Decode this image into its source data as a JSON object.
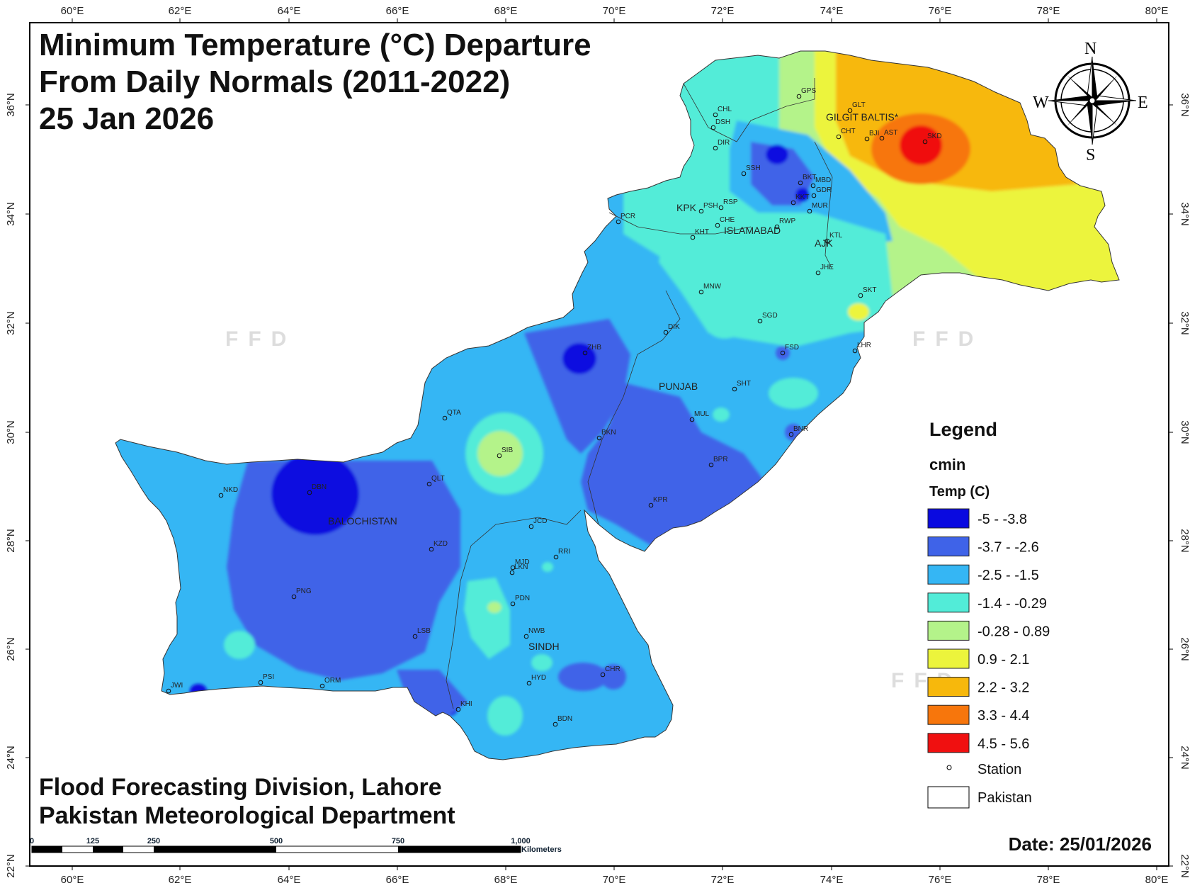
{
  "title": {
    "line1": "Minimum Temperature (°C) Departure",
    "line2": "From Daily Normals (2011-2022)",
    "line3": "25 Jan 2026"
  },
  "credits": {
    "line1": "Flood Forecasting Division, Lahore",
    "line2": "Pakistan Meteorological Department"
  },
  "date_label": "Date: 25/01/2026",
  "watermark": "FFD",
  "compass": {
    "n": "N",
    "s": "S",
    "e": "E",
    "w": "W"
  },
  "axes": {
    "lon_labels": [
      "60°E",
      "62°E",
      "64°E",
      "66°E",
      "68°E",
      "70°E",
      "72°E",
      "74°E",
      "76°E",
      "78°E",
      "80°E"
    ],
    "lat_labels": [
      "36°N",
      "34°N",
      "32°N",
      "30°N",
      "28°N",
      "26°N",
      "24°N",
      "22°N"
    ]
  },
  "scale_bar": {
    "labels": [
      "0",
      "125",
      "250",
      "500",
      "750",
      "1,000"
    ],
    "unit": "Kilometers"
  },
  "regions": {
    "gilgit": "GILGIT BALTIS*",
    "kpk": "KPK",
    "islamabad": "ISLAMABAD",
    "ajk": "AJK",
    "punjab": "PUNJAB",
    "balochistan": "BALOCHISTAN",
    "sindh": "SINDH"
  },
  "stations": [
    "GPS",
    "GLT",
    "CHT",
    "BJI",
    "AST",
    "SKD",
    "CHL",
    "DSH",
    "DIR",
    "SSH",
    "BKT",
    "MBD",
    "GDR",
    "KKT",
    "MUR",
    "PSH",
    "RSP",
    "CHE",
    "KHT",
    "PCR",
    "RWP",
    "KTL",
    "JHE",
    "SKT",
    "MNW",
    "SGD",
    "DIK",
    "ZHB",
    "LHR",
    "FSD",
    "SHT",
    "QTA",
    "MUL",
    "BKN",
    "BNR",
    "SIB",
    "BPR",
    "QLT",
    "NKD",
    "DBN",
    "KPR",
    "JCD",
    "KZD",
    "RRI",
    "LKN",
    "MJD",
    "PNG",
    "PDN",
    "NWB",
    "LSB",
    "CHR",
    "HYD",
    "PSI",
    "ORM",
    "JWI",
    "KHI",
    "BDN"
  ],
  "legend": {
    "title": "Legend",
    "layer": "cmin",
    "field": "Temp (C)",
    "classes": [
      {
        "label": "-5 - -3.8",
        "color": "#0a0ae0"
      },
      {
        "label": "-3.7 - -2.6",
        "color": "#3f63e8"
      },
      {
        "label": "-2.5 - -1.5",
        "color": "#35b6f4"
      },
      {
        "label": "-1.4 - -0.29",
        "color": "#52ecd8"
      },
      {
        "label": "-0.28 - 0.89",
        "color": "#b4f38a"
      },
      {
        "label": "0.9 - 2.1",
        "color": "#ecf43c"
      },
      {
        "label": "2.2 - 3.2",
        "color": "#f7b80c"
      },
      {
        "label": "3.3 - 4.4",
        "color": "#f7760c"
      },
      {
        "label": "4.5 - 5.6",
        "color": "#f01010"
      }
    ],
    "station_label": "Station",
    "boundary_label": "Pakistan"
  }
}
